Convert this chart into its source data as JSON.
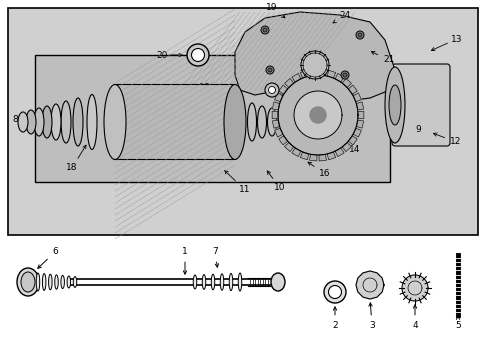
{
  "bg_color": "#ffffff",
  "outer_box_color": "#c8c8c8",
  "inner_box_color": "#d4d4d4",
  "line_color": "#000000",
  "fig_width": 4.89,
  "fig_height": 3.6,
  "dpi": 100,
  "labels": {
    "font_size": 6.5,
    "font_color": "#000000"
  }
}
